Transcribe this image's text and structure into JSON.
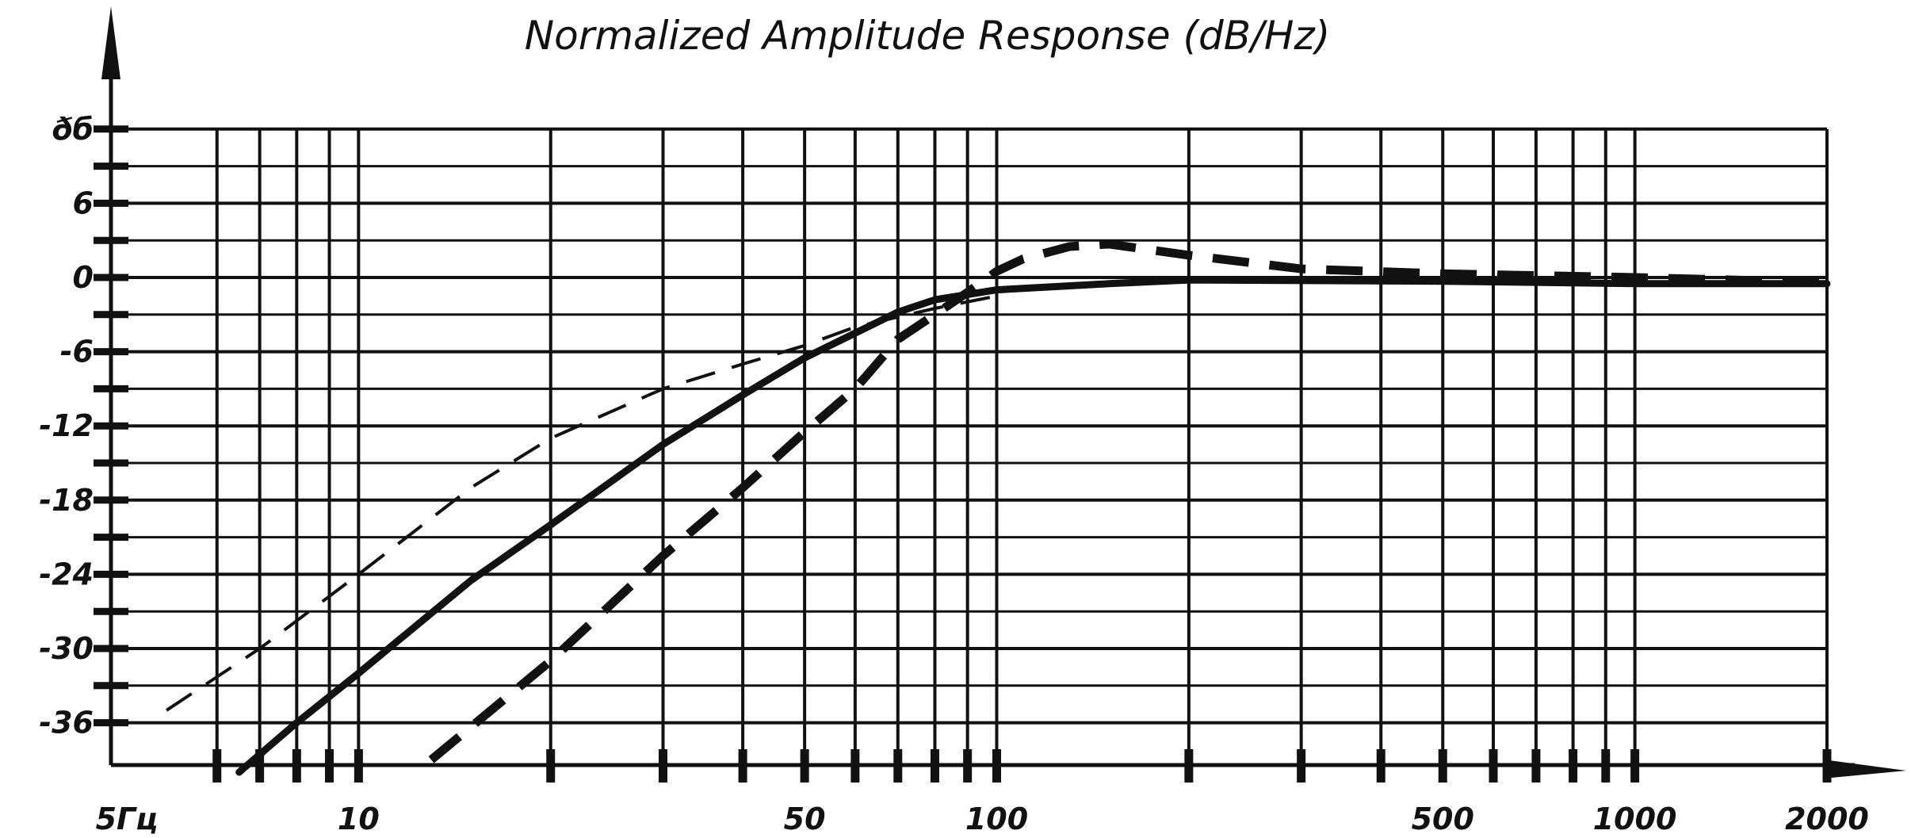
{
  "chart_data": {
    "type": "line",
    "title": "Normalized Amplitude Response (dB/Hz)",
    "xlabel": "",
    "ylabel": "",
    "x_scale": "log",
    "xlim": [
      5,
      2000
    ],
    "ylim": [
      -40,
      12
    ],
    "x_tick_labels": [
      "5Гц",
      "10",
      "50",
      "100",
      "500",
      "1000",
      "2000"
    ],
    "y_tick_labels": [
      "ðб",
      "6",
      "0",
      "-6",
      "-12",
      "-18",
      "-24",
      "-30",
      "-36"
    ],
    "grid": true,
    "legend": "none",
    "series": [
      {
        "style": "solid-thick",
        "x": [
          6.5,
          8,
          10,
          15,
          20,
          30,
          40,
          50,
          60,
          70,
          80,
          100,
          150,
          200,
          500,
          1000,
          2000
        ],
        "y": [
          -40,
          -36,
          -32,
          -24.5,
          -20,
          -13.5,
          -9.5,
          -6.5,
          -4.5,
          -2.8,
          -1.8,
          -1,
          -0.5,
          -0.2,
          -0.3,
          -0.5,
          -0.5
        ]
      },
      {
        "style": "dashed-thin",
        "x": [
          5,
          7,
          10,
          15,
          20,
          30,
          40,
          50,
          60,
          80,
          100
        ],
        "y": [
          -35,
          -30,
          -24,
          -17,
          -13,
          -9,
          -7,
          -5.5,
          -4,
          -2.5,
          -1.5
        ]
      },
      {
        "style": "dashed-thick",
        "x": [
          13,
          20,
          30,
          40,
          50,
          60,
          70,
          80,
          90,
          100,
          110,
          130,
          150,
          200,
          300,
          500,
          1000,
          2000
        ],
        "y": [
          -39,
          -31,
          -22.5,
          -17,
          -12.5,
          -9,
          -5,
          -3,
          -1.2,
          0.5,
          1.5,
          2.5,
          2.7,
          1.8,
          0.7,
          0.3,
          0,
          -0.4
        ]
      }
    ]
  }
}
